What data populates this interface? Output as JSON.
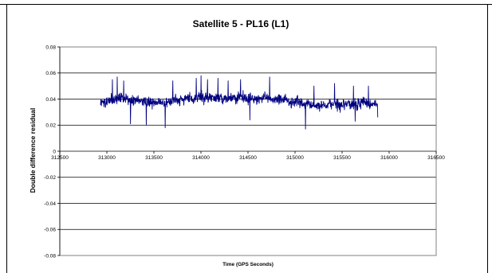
{
  "chart_data": {
    "type": "line",
    "title": "Satellite 5 - PL16 (L1)",
    "xlabel": "Time (GPS Seconds)",
    "ylabel": "Double difference residual",
    "xlim": [
      312500,
      316500
    ],
    "ylim": [
      -0.08,
      0.08
    ],
    "xticks": [
      312500,
      313000,
      313500,
      314000,
      314500,
      315000,
      315500,
      316000,
      316500
    ],
    "xtick_labels": [
      "312500",
      "313000",
      "313500",
      "314000",
      "314500",
      "315000",
      "315500",
      "316000",
      "316500"
    ],
    "yticks": [
      -0.08,
      -0.06,
      -0.04,
      -0.02,
      0,
      0.02,
      0.04,
      0.06,
      0.08
    ],
    "ytick_labels": [
      "-0.08",
      "-0.06",
      "-0.04",
      "-0.02",
      "0",
      "0.02",
      "0.04",
      "0.06",
      "0.08"
    ],
    "grid": true,
    "legend": "none",
    "series_color": "#000080",
    "x_start": 312930,
    "x_end": 315880,
    "profile": [
      [
        312930,
        0.039
      ],
      [
        313000,
        0.038
      ],
      [
        313100,
        0.04
      ],
      [
        313200,
        0.041
      ],
      [
        313300,
        0.039
      ],
      [
        313400,
        0.038
      ],
      [
        313500,
        0.037
      ],
      [
        313600,
        0.038
      ],
      [
        313700,
        0.039
      ],
      [
        313800,
        0.04
      ],
      [
        313900,
        0.041
      ],
      [
        314000,
        0.041
      ],
      [
        314100,
        0.041
      ],
      [
        314200,
        0.041
      ],
      [
        314300,
        0.04
      ],
      [
        314400,
        0.041
      ],
      [
        314500,
        0.041
      ],
      [
        314600,
        0.04
      ],
      [
        314700,
        0.041
      ],
      [
        314800,
        0.04
      ],
      [
        314900,
        0.039
      ],
      [
        315000,
        0.037
      ],
      [
        315100,
        0.036
      ],
      [
        315200,
        0.036
      ],
      [
        315300,
        0.035
      ],
      [
        315400,
        0.036
      ],
      [
        315500,
        0.035
      ],
      [
        315600,
        0.036
      ],
      [
        315700,
        0.037
      ],
      [
        315800,
        0.036
      ],
      [
        315880,
        0.037
      ]
    ],
    "noise_amplitude": 0.0045,
    "extremes": [
      [
        313060,
        0.055
      ],
      [
        313110,
        0.057
      ],
      [
        313180,
        0.054
      ],
      [
        313250,
        0.021
      ],
      [
        313420,
        0.02
      ],
      [
        313620,
        0.018
      ],
      [
        313700,
        0.054
      ],
      [
        313950,
        0.056
      ],
      [
        314000,
        0.058
      ],
      [
        314070,
        0.055
      ],
      [
        314180,
        0.056
      ],
      [
        314290,
        0.054
      ],
      [
        314420,
        0.055
      ],
      [
        314520,
        0.024
      ],
      [
        314730,
        0.057
      ],
      [
        315110,
        0.017
      ],
      [
        315200,
        0.05
      ],
      [
        315420,
        0.052
      ],
      [
        315620,
        0.05
      ],
      [
        315640,
        0.023
      ],
      [
        315780,
        0.05
      ],
      [
        315880,
        0.026
      ]
    ]
  }
}
